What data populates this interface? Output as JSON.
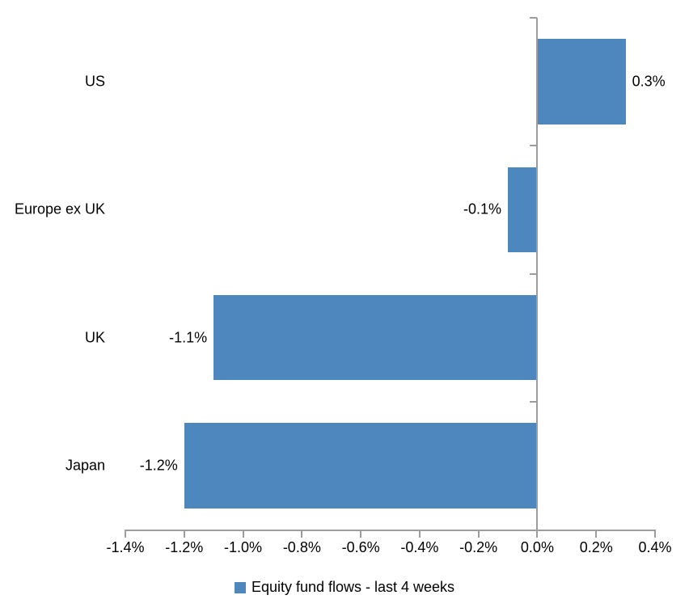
{
  "chart_data": {
    "type": "bar",
    "orientation": "horizontal",
    "title": "",
    "categories": [
      "US",
      "Europe ex UK",
      "UK",
      "Japan"
    ],
    "values": [
      0.3,
      -0.1,
      -1.1,
      -1.2
    ],
    "data_labels": [
      "0.3%",
      "-0.1%",
      "-1.1%",
      "-1.2%"
    ],
    "xlabel": "",
    "ylabel": "",
    "xlim": [
      -1.4,
      0.4
    ],
    "x_tick_values": [
      -1.4,
      -1.2,
      -1.0,
      -0.8,
      -0.6,
      -0.4,
      -0.2,
      0.0,
      0.2,
      0.4
    ],
    "x_tick_labels": [
      "-1.4%",
      "-1.2%",
      "-1.0%",
      "-0.8%",
      "-0.6%",
      "-0.4%",
      "-0.2%",
      "0.0%",
      "0.2%",
      "0.4%"
    ],
    "grid": false,
    "legend": {
      "label": "Equity fund flows - last 4 weeks",
      "position": "bottom"
    },
    "colors": {
      "bar": "#4e86be",
      "axis": "#9c9c9c",
      "text": "#000000",
      "background": "#ffffff"
    }
  }
}
